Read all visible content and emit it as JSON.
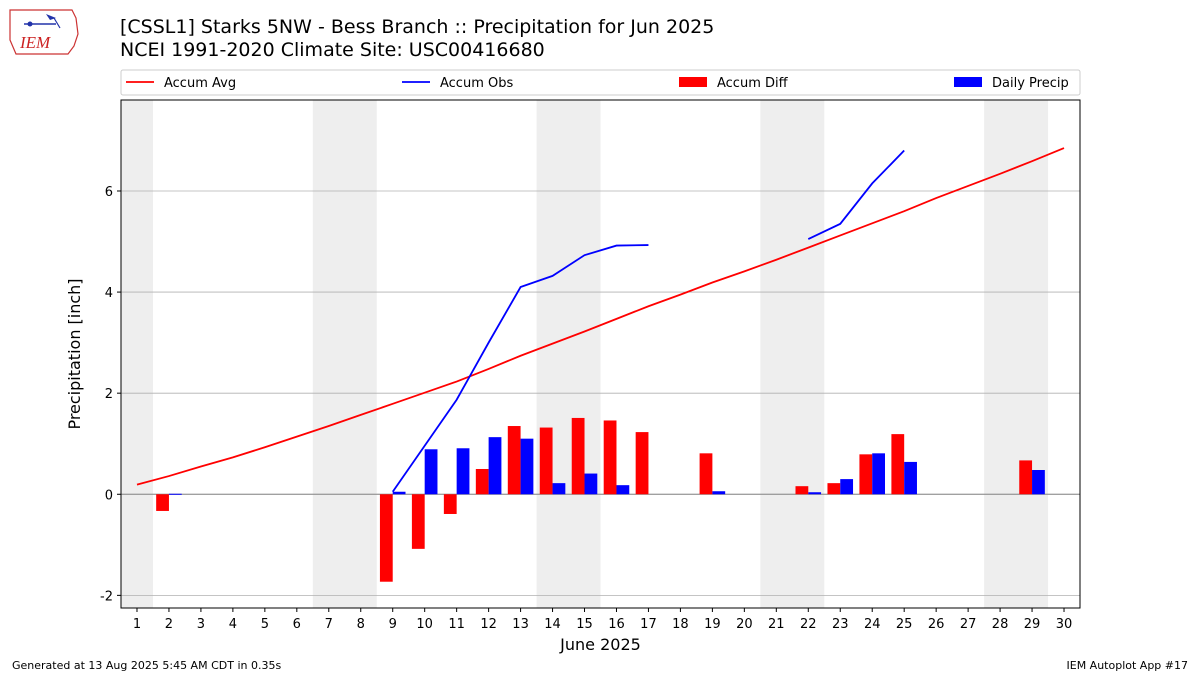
{
  "header": {
    "title_line1": "[CSSL1] Starks 5NW - Bess Branch :: Precipitation for Jun 2025",
    "title_line2": "NCEI 1991-2020 Climate Site: USC00416680",
    "logo_text": "IEM"
  },
  "footer": {
    "generated": "Generated at 13 Aug 2025 5:45 AM CDT in 0.35s",
    "app": "IEM Autoplot App #17"
  },
  "colors": {
    "accum_avg": "#ff0000",
    "accum_obs": "#0000ff",
    "accum_diff": "#ff0000",
    "daily_precip": "#0000ff",
    "weekend_band": "#eeeeee",
    "grid": "#b0b0b0"
  },
  "chart_data": {
    "type": "bar",
    "xlabel": "June 2025",
    "ylabel": "Precipitation [inch]",
    "xlim": [
      0.5,
      30.5
    ],
    "ylim": [
      -2.25,
      7.8
    ],
    "yticks": [
      -2,
      0,
      2,
      4,
      6
    ],
    "grid": "horizontal",
    "legend_position": "top",
    "days": [
      1,
      2,
      3,
      4,
      5,
      6,
      7,
      8,
      9,
      10,
      11,
      12,
      13,
      14,
      15,
      16,
      17,
      18,
      19,
      20,
      21,
      22,
      23,
      24,
      25,
      26,
      27,
      28,
      29,
      30
    ],
    "weekend_bands": [
      [
        0.5,
        1.5
      ],
      [
        6.5,
        8.5
      ],
      [
        13.5,
        15.5
      ],
      [
        20.5,
        22.5
      ],
      [
        27.5,
        29.5
      ]
    ],
    "series": [
      {
        "name": "Accum Avg",
        "kind": "line",
        "points": [
          [
            1,
            0.19
          ],
          [
            2,
            0.36
          ],
          [
            3,
            0.55
          ],
          [
            4,
            0.73
          ],
          [
            5,
            0.93
          ],
          [
            6,
            1.14
          ],
          [
            7,
            1.35
          ],
          [
            8,
            1.57
          ],
          [
            9,
            1.79
          ],
          [
            10,
            2.01
          ],
          [
            11,
            2.23
          ],
          [
            12,
            2.48
          ],
          [
            13,
            2.74
          ],
          [
            14,
            2.98
          ],
          [
            15,
            3.22
          ],
          [
            16,
            3.47
          ],
          [
            17,
            3.72
          ],
          [
            18,
            3.95
          ],
          [
            19,
            4.19
          ],
          [
            20,
            4.41
          ],
          [
            21,
            4.64
          ],
          [
            22,
            4.88
          ],
          [
            23,
            5.12
          ],
          [
            24,
            5.36
          ],
          [
            25,
            5.6
          ],
          [
            26,
            5.86
          ],
          [
            27,
            6.1
          ],
          [
            28,
            6.34
          ],
          [
            29,
            6.59
          ],
          [
            30,
            6.85
          ]
        ]
      },
      {
        "name": "Accum Obs",
        "kind": "line",
        "segments": [
          [
            [
              9,
              0.05
            ],
            [
              10,
              0.96
            ],
            [
              11,
              1.87
            ],
            [
              12,
              3.0
            ],
            [
              13,
              4.1
            ],
            [
              14,
              4.32
            ],
            [
              15,
              4.73
            ],
            [
              16,
              4.92
            ],
            [
              17,
              4.93
            ]
          ],
          [
            [
              22,
              5.05
            ],
            [
              23,
              5.35
            ],
            [
              24,
              6.15
            ],
            [
              25,
              6.8
            ]
          ]
        ]
      },
      {
        "name": "Accum Diff",
        "kind": "bar",
        "points": [
          [
            2,
            -0.33
          ],
          [
            9,
            -1.73
          ],
          [
            10,
            -1.08
          ],
          [
            11,
            -0.39
          ],
          [
            12,
            0.5
          ],
          [
            13,
            1.35
          ],
          [
            14,
            1.32
          ],
          [
            15,
            1.51
          ],
          [
            16,
            1.46
          ],
          [
            17,
            1.23
          ],
          [
            19,
            0.81
          ],
          [
            22,
            0.16
          ],
          [
            23,
            0.22
          ],
          [
            24,
            0.79
          ],
          [
            25,
            1.19
          ],
          [
            29,
            0.67
          ]
        ]
      },
      {
        "name": "Daily Precip",
        "kind": "bar",
        "points": [
          [
            2,
            0.01
          ],
          [
            9,
            0.05
          ],
          [
            10,
            0.89
          ],
          [
            11,
            0.91
          ],
          [
            12,
            1.13
          ],
          [
            13,
            1.1
          ],
          [
            14,
            0.22
          ],
          [
            15,
            0.41
          ],
          [
            16,
            0.18
          ],
          [
            19,
            0.06
          ],
          [
            22,
            0.04
          ],
          [
            23,
            0.3
          ],
          [
            24,
            0.81
          ],
          [
            25,
            0.64
          ],
          [
            29,
            0.48
          ]
        ]
      }
    ]
  }
}
